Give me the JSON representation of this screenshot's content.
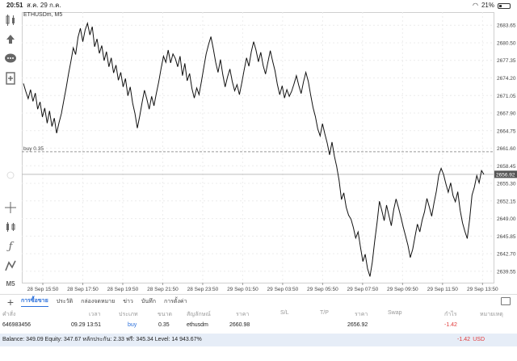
{
  "status": {
    "time": "20:51",
    "date": "ส.ค. 29 ก.ค.",
    "battery": "21%",
    "battery_level": 0.21
  },
  "chart": {
    "symbol_label": "ETHUSDm, M5",
    "position_line_label": "buy 0.35",
    "current_price_label": "2656.92",
    "price_axis": [
      "2683.65",
      "2680.50",
      "2677.35",
      "2674.20",
      "2671.05",
      "2667.90",
      "2664.75",
      "2661.60",
      "2658.45",
      "2655.30",
      "2652.15",
      "2649.00",
      "2645.85",
      "2642.70",
      "2639.55"
    ],
    "time_axis": [
      "28 Sep 15:50",
      "28 Sep 17:50",
      "28 Sep 19:50",
      "28 Sep 21:50",
      "28 Sep 23:50",
      "29 Sep 01:50",
      "29 Sep 03:50",
      "29 Sep 05:50",
      "29 Sep 07:50",
      "29 Sep 09:50",
      "29 Sep 11:50",
      "29 Sep 13:50"
    ]
  },
  "chart_data": {
    "type": "line",
    "title": "ETHUSDm, M5",
    "xlabel": "",
    "ylabel": "",
    "ylim": [
      2637.5,
      2686.0
    ],
    "position_price": 2660.98,
    "current_price": 2656.92,
    "series": [
      {
        "values": [
          2673.2,
          2671.8,
          2670.5,
          2672.1,
          2670.0,
          2671.5,
          2668.6,
          2669.9,
          2667.2,
          2668.8,
          2666.1,
          2668.3,
          2665.5,
          2667.0,
          2664.3,
          2666.2,
          2667.8,
          2670.1,
          2672.4,
          2674.9,
          2677.2,
          2679.6,
          2678.4,
          2681.5,
          2683.1,
          2680.7,
          2682.8,
          2684.0,
          2681.9,
          2683.4,
          2679.8,
          2681.2,
          2678.6,
          2680.0,
          2677.3,
          2678.9,
          2676.2,
          2677.8,
          2675.1,
          2676.5,
          2673.8,
          2675.2,
          2672.6,
          2674.1,
          2671.0,
          2672.6,
          2669.7,
          2667.8,
          2665.2,
          2667.4,
          2669.8,
          2672.0,
          2670.4,
          2668.6,
          2670.9,
          2669.2,
          2671.4,
          2673.5,
          2675.9,
          2678.1,
          2677.0,
          2679.2,
          2676.9,
          2678.5,
          2677.7,
          2676.2,
          2678.1,
          2674.6,
          2676.8,
          2673.7,
          2675.0,
          2672.3,
          2670.6,
          2672.4,
          2671.2,
          2673.6,
          2676.1,
          2678.5,
          2680.2,
          2681.6,
          2679.4,
          2677.0,
          2675.2,
          2677.5,
          2674.8,
          2672.6,
          2674.4,
          2675.8,
          2673.5,
          2671.9,
          2673.0,
          2671.2,
          2673.3,
          2675.6,
          2677.8,
          2676.3,
          2678.9,
          2680.7,
          2679.2,
          2677.1,
          2678.8,
          2676.4,
          2674.9,
          2677.0,
          2679.1,
          2677.2,
          2675.5,
          2673.0,
          2671.2,
          2672.8,
          2670.6,
          2672.1,
          2670.9,
          2671.8,
          2673.1,
          2674.6,
          2672.9,
          2671.4,
          2673.5,
          2675.2,
          2673.6,
          2671.2,
          2668.9,
          2667.3,
          2665.1,
          2663.8,
          2666.0,
          2664.2,
          2662.5,
          2660.4,
          2662.7,
          2660.2,
          2658.3,
          2655.8,
          2652.4,
          2653.6,
          2651.0,
          2649.6,
          2648.9,
          2647.4,
          2645.5,
          2646.6,
          2643.9,
          2641.3,
          2642.6,
          2640.0,
          2638.6,
          2641.2,
          2644.9,
          2648.3,
          2652.1,
          2650.4,
          2648.6,
          2651.4,
          2649.5,
          2647.7,
          2650.6,
          2652.5,
          2651.0,
          2649.3,
          2647.5,
          2645.9,
          2644.2,
          2642.0,
          2643.5,
          2645.8,
          2648.0,
          2646.6,
          2648.7,
          2650.2,
          2652.6,
          2651.1,
          2649.4,
          2651.8,
          2653.9,
          2656.8,
          2658.0,
          2656.9,
          2655.2,
          2653.7,
          2655.4,
          2653.1,
          2652.0,
          2653.8,
          2650.5,
          2648.2,
          2646.7,
          2645.4,
          2648.9,
          2653.2,
          2654.6,
          2656.7,
          2655.4,
          2657.6,
          2656.92
        ]
      }
    ]
  },
  "tabs": {
    "items": [
      "การซื้อขาย",
      "ประวัติ",
      "กล่องจดหมาย",
      "ข่าว",
      "บันทึก",
      "การตั้งค่า"
    ],
    "active_index": 0
  },
  "table": {
    "headers": [
      "คำสั่ง",
      "เวลา",
      "ประเภท",
      "ขนาด",
      "สัญลักษณ์",
      "ราคา",
      "S/L",
      "T/P",
      "ราคา",
      "Swap",
      "กำไร",
      "หมายเหตุ"
    ],
    "row": {
      "order": "646983456",
      "time": "09.29 13:51",
      "type": "buy",
      "size": "0.35",
      "symbol": "ethusdm",
      "open_price": "2660.98",
      "sl": "",
      "tp": "",
      "price": "2656.92",
      "swap": "",
      "profit": "-1.42",
      "comment": ""
    }
  },
  "summary": {
    "text": "Balance: 349.09 Equity: 347.67 หลักประกัน: 2.33 ฟรี: 345.34 Level: 14 943.67%",
    "profit": "-1.42",
    "currency": "USD"
  },
  "colors": {
    "accent": "#2a6fdb",
    "loss": "#e03a3a",
    "summary_bg": "#e6edf7"
  }
}
